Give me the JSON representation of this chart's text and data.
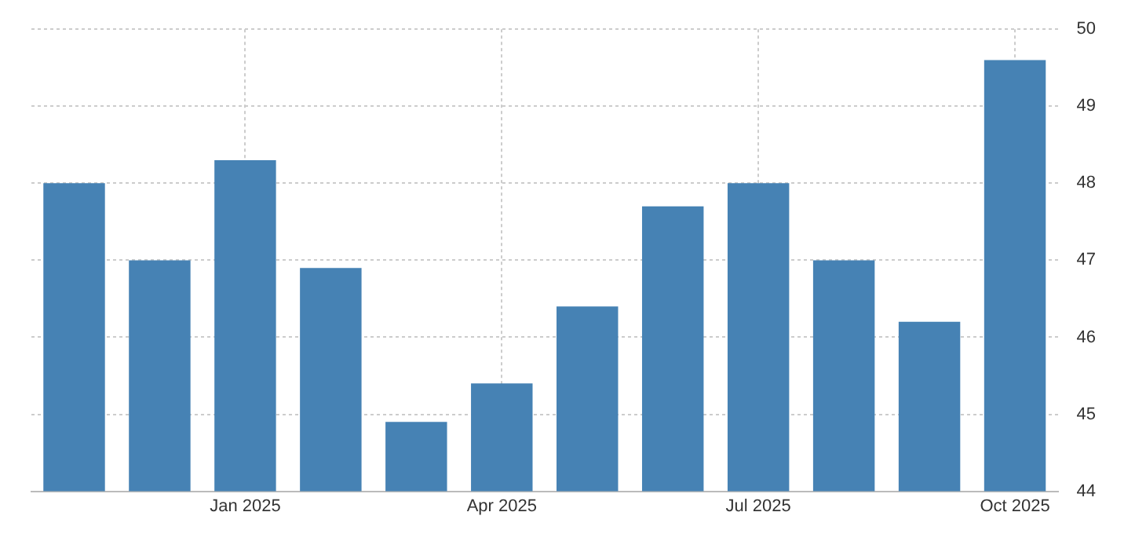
{
  "chart_data": {
    "type": "bar",
    "categories": [
      null,
      null,
      "Jan 2025",
      null,
      null,
      "Apr 2025",
      null,
      null,
      "Jul 2025",
      null,
      null,
      "Oct 2025"
    ],
    "values": [
      48,
      47,
      48.3,
      46.9,
      44.9,
      45.4,
      46.4,
      47.7,
      48,
      47,
      46.2,
      49.6
    ],
    "color": "#4682b4",
    "ylim": [
      44,
      50
    ],
    "yticks": [
      44,
      45,
      46,
      47,
      48,
      49,
      50
    ],
    "grid": true
  }
}
